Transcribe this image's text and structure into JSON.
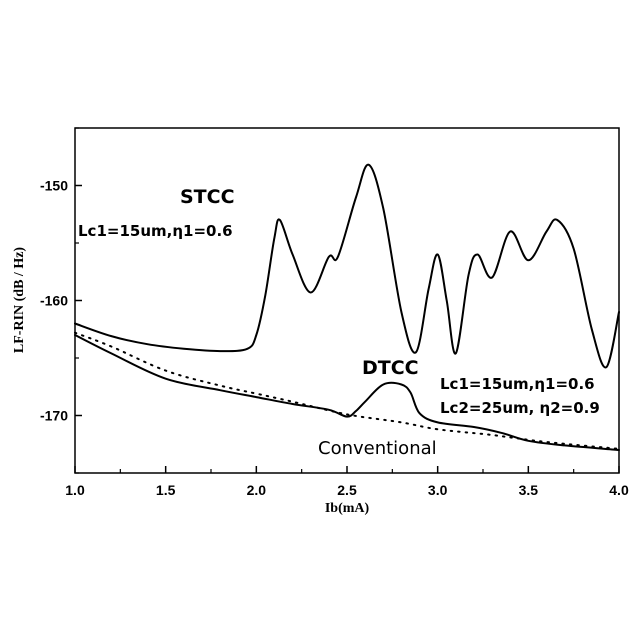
{
  "chart_data": {
    "type": "line",
    "xlabel": "Ib(mA)",
    "ylabel": "LF-RIN (dB / Hz)",
    "xlim": [
      1.0,
      4.0
    ],
    "ylim": [
      -175,
      -145
    ],
    "xticks": [
      "1.0",
      "1.5",
      "2.0",
      "2.5",
      "3.0",
      "3.5",
      "4.0"
    ],
    "yticks": [
      "-150",
      "-160",
      "-170"
    ],
    "grid": false,
    "legend": "none",
    "annotations": {
      "stcc_title": "STCC",
      "stcc_params": "Lc1=15um,η1=0.6",
      "dtcc_title": "DTCC",
      "dtcc_params1": "Lc1=15um,η1=0.6",
      "dtcc_params2": "Lc2=25um, η2=0.9",
      "conventional": "Conventional"
    },
    "series": [
      {
        "style": "solid",
        "x": [
          1.0,
          1.2,
          1.4,
          1.6,
          1.8,
          1.95,
          2.0,
          2.05,
          2.1,
          2.13,
          2.2,
          2.3,
          2.4,
          2.45,
          2.55,
          2.62,
          2.7,
          2.8,
          2.88,
          2.95,
          3.0,
          3.05,
          3.1,
          3.17,
          3.22,
          3.3,
          3.4,
          3.5,
          3.6,
          3.66,
          3.75,
          3.85,
          3.93,
          4.0
        ],
        "y": [
          -162,
          -163.1,
          -163.8,
          -164.2,
          -164.4,
          -164.2,
          -163,
          -159.5,
          -154.5,
          -153,
          -156,
          -159.3,
          -156.2,
          -156.2,
          -151,
          -148.2,
          -152,
          -161,
          -164.5,
          -159,
          -156,
          -160,
          -164.6,
          -157.8,
          -156,
          -158,
          -154,
          -156.5,
          -154,
          -153,
          -155.5,
          -162.5,
          -165.8,
          -161
        ]
      },
      {
        "style": "solid",
        "x": [
          1.0,
          1.2,
          1.5,
          1.8,
          2.0,
          2.2,
          2.4,
          2.5,
          2.55,
          2.6,
          2.7,
          2.8,
          2.85,
          2.9,
          3.0,
          3.2,
          3.35,
          3.5,
          3.7,
          4.0
        ],
        "y": [
          -163,
          -164.6,
          -166.8,
          -167.8,
          -168.4,
          -169,
          -169.5,
          -170.1,
          -169.6,
          -168.8,
          -167.3,
          -167.3,
          -168,
          -169.8,
          -170.6,
          -171,
          -171.5,
          -172.2,
          -172.6,
          -173
        ]
      },
      {
        "style": "dotted",
        "x": [
          1.0,
          1.2,
          1.5,
          1.8,
          2.0,
          2.2,
          2.5,
          2.8,
          3.0,
          3.3,
          3.6,
          4.0
        ],
        "y": [
          -162.8,
          -164,
          -166.1,
          -167.4,
          -168.1,
          -168.8,
          -169.9,
          -170.6,
          -171.2,
          -171.7,
          -172.3,
          -172.9
        ]
      }
    ]
  }
}
